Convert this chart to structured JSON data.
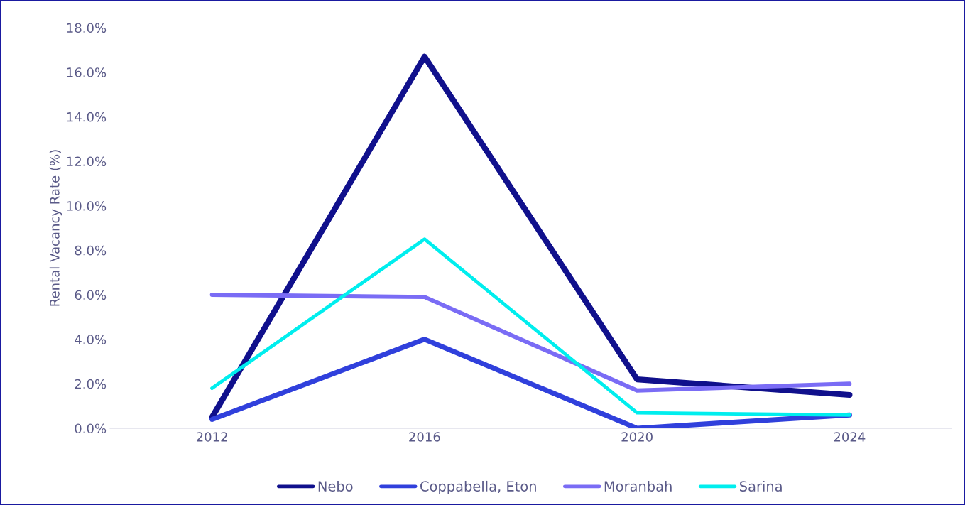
{
  "chart_data": {
    "type": "line",
    "ylabel": "Rental Vacancy Rate (%)",
    "categories": [
      "2012",
      "2016",
      "2020",
      "2024"
    ],
    "series": [
      {
        "name": "Nebo",
        "color": "#10108c",
        "values": [
          0.5,
          16.7,
          2.2,
          1.5
        ]
      },
      {
        "name": "Coppabella, Eton",
        "color": "#3040dc",
        "values": [
          0.4,
          4.0,
          0.0,
          0.6
        ]
      },
      {
        "name": "Moranbah",
        "color": "#7a6cf5",
        "values": [
          6.0,
          5.9,
          1.7,
          2.0
        ]
      },
      {
        "name": "Sarina",
        "color": "#00eeee",
        "values": [
          1.8,
          8.5,
          0.7,
          0.6
        ]
      }
    ],
    "ylim": [
      0,
      18
    ],
    "yticks": [
      {
        "value": 0,
        "label": "0.0%"
      },
      {
        "value": 2,
        "label": "2.0%"
      },
      {
        "value": 4,
        "label": "4.0%"
      },
      {
        "value": 6,
        "label": "6.0%"
      },
      {
        "value": 8,
        "label": "8.0%"
      },
      {
        "value": 10,
        "label": "10.0%"
      },
      {
        "value": 12,
        "label": "12.0%"
      },
      {
        "value": 14,
        "label": "14.0%"
      },
      {
        "value": 16,
        "label": "16.0%"
      },
      {
        "value": 18,
        "label": "18.0%"
      }
    ],
    "grid": false,
    "legend": "bottom",
    "marker": "none",
    "line_style": "solid"
  }
}
